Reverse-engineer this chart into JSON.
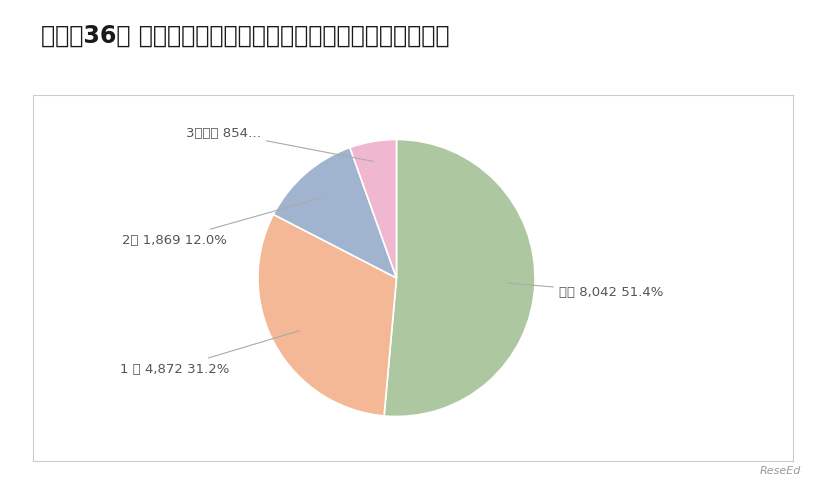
{
  "title": "【質問36】 今年度小学校高学年専科の配置がありましたか。",
  "slices": [
    {
      "label": "ない 8,042 51.4%",
      "value": 8042,
      "color": "#adc8a0"
    },
    {
      "label": "1 人 4,872 31.2%",
      "value": 4872,
      "color": "#f5b896"
    },
    {
      "label": "2人 1,869 12.0%",
      "value": 1869,
      "color": "#a0b4d0"
    },
    {
      "label": "3人以上 854…",
      "value": 854,
      "color": "#f0b8d0"
    }
  ],
  "background_color": "#ffffff",
  "chart_area_color": "#ffffff",
  "chart_border_color": "#cccccc",
  "title_fontsize": 17,
  "label_fontsize": 9.5,
  "startangle": 90,
  "watermark": "ReseEd"
}
